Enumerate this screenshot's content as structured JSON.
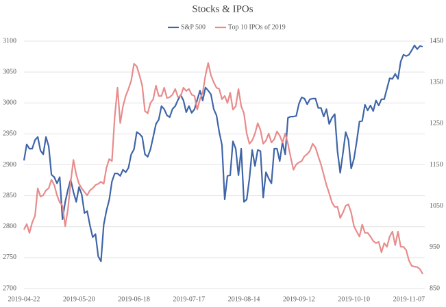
{
  "chart_data": {
    "type": "line",
    "title": "Stocks & IPOs",
    "categories": [
      "2019-04-22",
      null,
      null,
      null,
      null,
      null,
      null,
      null,
      null,
      null,
      null,
      null,
      null,
      null,
      null,
      null,
      null,
      null,
      null,
      null,
      "2019-05-20",
      null,
      null,
      null,
      null,
      null,
      null,
      null,
      null,
      null,
      null,
      null,
      null,
      null,
      null,
      null,
      null,
      null,
      null,
      null,
      "2019-06-18",
      null,
      null,
      null,
      null,
      null,
      null,
      null,
      null,
      null,
      null,
      null,
      null,
      null,
      null,
      null,
      null,
      null,
      null,
      null,
      "2019-07-17",
      null,
      null,
      null,
      null,
      null,
      null,
      null,
      null,
      null,
      null,
      null,
      null,
      null,
      null,
      null,
      null,
      null,
      null,
      null,
      "2019-08-14",
      null,
      null,
      null,
      null,
      null,
      null,
      null,
      null,
      null,
      null,
      null,
      null,
      null,
      null,
      null,
      null,
      null,
      null,
      null,
      "2019-09-12",
      null,
      null,
      null,
      null,
      null,
      null,
      null,
      null,
      null,
      null,
      null,
      null,
      null,
      null,
      null,
      null,
      null,
      null,
      null,
      "2019-10-10",
      null,
      null,
      null,
      null,
      null,
      null,
      null,
      null,
      null,
      null,
      null,
      null,
      null,
      null,
      null,
      null,
      null,
      null,
      null,
      "2019-11-07",
      null,
      null,
      null,
      null,
      null
    ],
    "series": [
      {
        "name": "S&P 500",
        "color": "#3f65a8",
        "values": [
          2907,
          2933,
          2926,
          2926,
          2940,
          2945,
          2923,
          2917,
          2945,
          2930,
          2884,
          2880,
          2870,
          2880,
          2812,
          2840,
          2860,
          2876,
          2856,
          2840,
          2864,
          2852,
          2822,
          2825,
          2802,
          2783,
          2788,
          2752,
          2744,
          2803,
          2826,
          2843,
          2873,
          2886,
          2886,
          2882,
          2892,
          2888,
          2895,
          2917,
          2925,
          2953,
          2950,
          2945,
          2917,
          2913,
          2925,
          2945,
          2966,
          2973,
          2995,
          2990,
          2980,
          2977,
          2990,
          2995,
          3005,
          3013,
          3004,
          2985,
          2995,
          2984,
          2990,
          3005,
          3020,
          3004,
          3025,
          3020,
          3014,
          2990,
          2980,
          2953,
          2932,
          2844,
          2882,
          2883,
          2938,
          2926,
          2883,
          2926,
          2840,
          2844,
          2878,
          2924,
          2898,
          2924,
          2922,
          2847,
          2888,
          2878,
          2870,
          2926,
          2926,
          2906,
          2936,
          2917,
          2976,
          2978,
          2978,
          2979,
          2999,
          3009,
          3007,
          2998,
          3006,
          3007,
          3007,
          2992,
          2992,
          2978,
          2990,
          2966,
          2976,
          2982,
          2922,
          2887,
          2919,
          2953,
          2940,
          2894,
          2910,
          2938,
          2970,
          2971,
          2997,
          2988,
          2996,
          2987,
          3004,
          2996,
          3006,
          3006,
          3023,
          3040,
          3039,
          3047,
          3039,
          3067,
          3078,
          3076,
          3078,
          3085,
          3093,
          3087,
          3092,
          3091
        ]
      },
      {
        "name": "Top 10 IPOs of 2019",
        "color": "#e88b8b",
        "axis": "y2",
        "values": [
          993,
          1006,
          985,
          1010,
          1026,
          1093,
          1073,
          1076,
          1088,
          1093,
          1114,
          1101,
          1076,
          1059,
          1051,
          1001,
          1043,
          1109,
          1162,
          1126,
          1104,
          1093,
          1084,
          1076,
          1088,
          1093,
          1101,
          1104,
          1109,
          1104,
          1143,
          1164,
          1159,
          1267,
          1337,
          1251,
          1292,
          1317,
          1334,
          1354,
          1395,
          1389,
          1367,
          1342,
          1280,
          1275,
          1300,
          1309,
          1342,
          1317,
          1317,
          1337,
          1312,
          1314,
          1320,
          1334,
          1314,
          1317,
          1337,
          1329,
          1334,
          1320,
          1317,
          1284,
          1309,
          1325,
          1367,
          1397,
          1367,
          1350,
          1337,
          1334,
          1309,
          1317,
          1300,
          1325,
          1284,
          1292,
          1334,
          1292,
          1275,
          1226,
          1201,
          1209,
          1226,
          1251,
          1234,
          1201,
          1209,
          1226,
          1204,
          1212,
          1231,
          1221,
          1204,
          1226,
          1201,
          1168,
          1138,
          1151,
          1156,
          1159,
          1171,
          1176,
          1184,
          1201,
          1192,
          1171,
          1151,
          1126,
          1101,
          1081,
          1059,
          1048,
          1048,
          1021,
          1034,
          1051,
          1054,
          1034,
          1001,
          988,
          976,
          1005,
          985,
          985,
          976,
          965,
          960,
          963,
          938,
          960,
          951,
          976,
          988,
          955,
          988,
          951,
          951,
          943,
          918,
          905,
          903,
          902,
          897,
          885
        ]
      }
    ],
    "ylim": [
      2700,
      3100
    ],
    "yticks": [
      2700,
      2750,
      2800,
      2850,
      2900,
      2950,
      3000,
      3050,
      3100
    ],
    "y2lim": [
      850,
      1450
    ],
    "y2ticks": [
      850,
      950,
      1050,
      1150,
      1250,
      1350,
      1450
    ],
    "grid": true,
    "legend": "top"
  }
}
